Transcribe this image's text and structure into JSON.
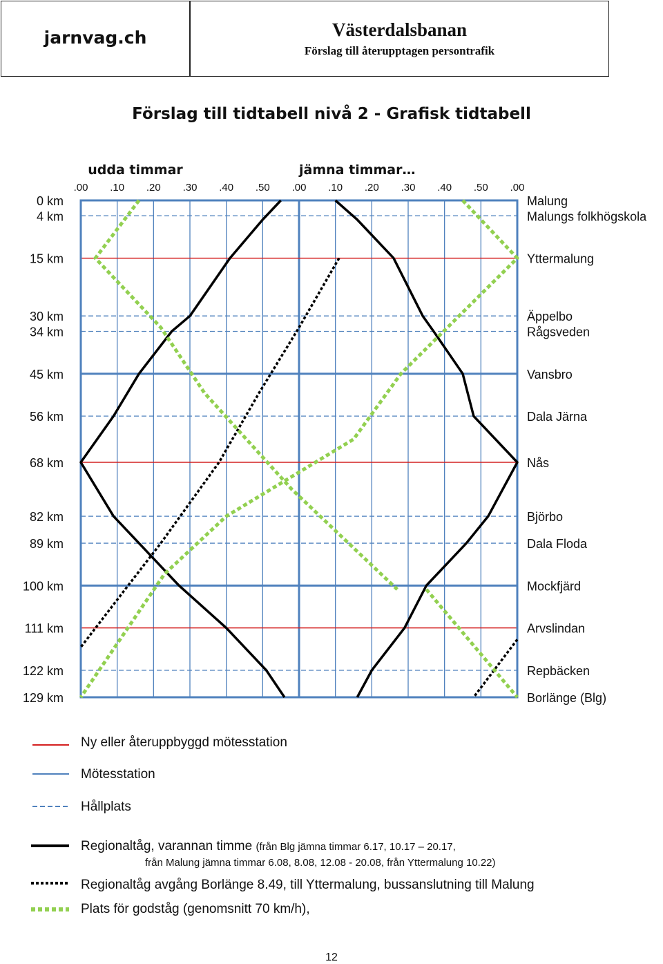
{
  "header": {
    "brand": "jarnvag.ch",
    "title": "Västerdalsbanan",
    "subtitle": "Förslag till återupptagen persontrafik"
  },
  "page_title": "Förslag till tidtabell nivå 2 - Grafisk tidtabell",
  "page_number": "12",
  "colors": {
    "grid": "#4f81bd",
    "frame": "#4f81bd",
    "new_station": "#d42020",
    "train": "#000000",
    "freight": "#92d050"
  },
  "legend": {
    "new_station": "Ny eller återuppbyggd mötesstation",
    "station": "Mötesstation",
    "halt": "Hållplats",
    "regional_main": "Regionaltåg, varannan timme",
    "regional_note1": "(från Blg jämna timmar    6.17, 10.17 – 20.17,",
    "regional_note2": "från Malung jämna timmar 6.08, 8.08, 12.08 - 20.08, från Yttermalung 10.22)",
    "regional_extra": "Regionaltåg avgång Borlänge 8.49, till Yttermalung, bussanslutning till Malung",
    "freight": "Plats för godståg (genomsnitt 70 km/h),"
  },
  "chart_data": {
    "type": "line",
    "title": "",
    "hour_labels": [
      "udda timmar",
      "jämna timmar…"
    ],
    "x_ticks": [
      ".00",
      ".10",
      ".20",
      ".30",
      ".40",
      ".50",
      ".00",
      ".10",
      ".20",
      ".30",
      ".40",
      ".50",
      ".00"
    ],
    "xlim": [
      0,
      120
    ],
    "ylim": [
      0,
      129
    ],
    "stations": [
      {
        "km": 0,
        "km_label": "0 km",
        "name": "Malung",
        "kind": "frame"
      },
      {
        "km": 4,
        "km_label": "4 km",
        "name": "Malungs folkhögskola",
        "kind": "halt"
      },
      {
        "km": 15,
        "km_label": "15 km",
        "name": "Yttermalung",
        "kind": "new"
      },
      {
        "km": 30,
        "km_label": "30 km",
        "name": "Äppelbo",
        "kind": "halt"
      },
      {
        "km": 34,
        "km_label": "34 km",
        "name": "Rågsveden",
        "kind": "halt"
      },
      {
        "km": 45,
        "km_label": "45 km",
        "name": "Vansbro",
        "kind": "station"
      },
      {
        "km": 56,
        "km_label": "56 km",
        "name": "Dala Järna",
        "kind": "halt"
      },
      {
        "km": 68,
        "km_label": "68 km",
        "name": "Nås",
        "kind": "new"
      },
      {
        "km": 82,
        "km_label": "82 km",
        "name": "Björbo",
        "kind": "halt"
      },
      {
        "km": 89,
        "km_label": "89 km",
        "name": "Dala Floda",
        "kind": "halt"
      },
      {
        "km": 100,
        "km_label": "100 km",
        "name": "Mockfjärd",
        "kind": "station"
      },
      {
        "km": 111,
        "km_label": "111 km",
        "name": "Arvslindan",
        "kind": "new"
      },
      {
        "km": 122,
        "km_label": "122 km",
        "name": "Repbäcken",
        "kind": "halt"
      },
      {
        "km": 129,
        "km_label": "129 km",
        "name": "Borlänge (Blg)",
        "kind": "frame"
      }
    ],
    "series": [
      {
        "style": "regional",
        "points": [
          [
            55,
            0
          ],
          [
            50,
            5
          ],
          [
            41,
            15
          ],
          [
            30,
            30
          ],
          [
            25,
            34
          ],
          [
            16,
            45
          ],
          [
            9,
            56
          ],
          [
            0,
            68
          ],
          [
            9,
            82
          ],
          [
            16,
            89
          ],
          [
            27,
            100
          ],
          [
            40,
            111
          ],
          [
            51,
            122
          ],
          [
            56,
            129
          ]
        ]
      },
      {
        "style": "regional",
        "points": [
          [
            70,
            0
          ],
          [
            76,
            5
          ],
          [
            86,
            15
          ],
          [
            94,
            30
          ],
          [
            97,
            34
          ],
          [
            105,
            45
          ],
          [
            108,
            56
          ],
          [
            120,
            68
          ],
          [
            112,
            82
          ],
          [
            106,
            89
          ],
          [
            95,
            100
          ],
          [
            89,
            111
          ],
          [
            80,
            122
          ],
          [
            76,
            129
          ]
        ]
      },
      {
        "style": "regional-dotted",
        "points": [
          [
            71,
            15
          ],
          [
            60,
            33
          ],
          [
            49,
            50
          ],
          [
            38,
            68
          ],
          [
            22,
            89
          ],
          [
            13,
            100
          ],
          [
            0,
            116
          ],
          [
            120,
            114
          ],
          [
            108,
            129
          ]
        ]
      },
      {
        "style": "freight",
        "points": [
          [
            16,
            0
          ],
          [
            4,
            15
          ],
          [
            22,
            33
          ],
          [
            34,
            50
          ],
          [
            58,
            75
          ],
          [
            87,
            101
          ]
        ]
      },
      {
        "style": "freight",
        "points": [
          [
            105,
            0
          ],
          [
            120,
            15
          ],
          [
            88,
            45
          ],
          [
            75,
            62
          ],
          [
            40,
            82
          ],
          [
            23,
            97
          ],
          [
            0,
            129
          ]
        ]
      },
      {
        "style": "freight",
        "points": [
          [
            95,
            101
          ],
          [
            120,
            129
          ]
        ]
      }
    ]
  }
}
